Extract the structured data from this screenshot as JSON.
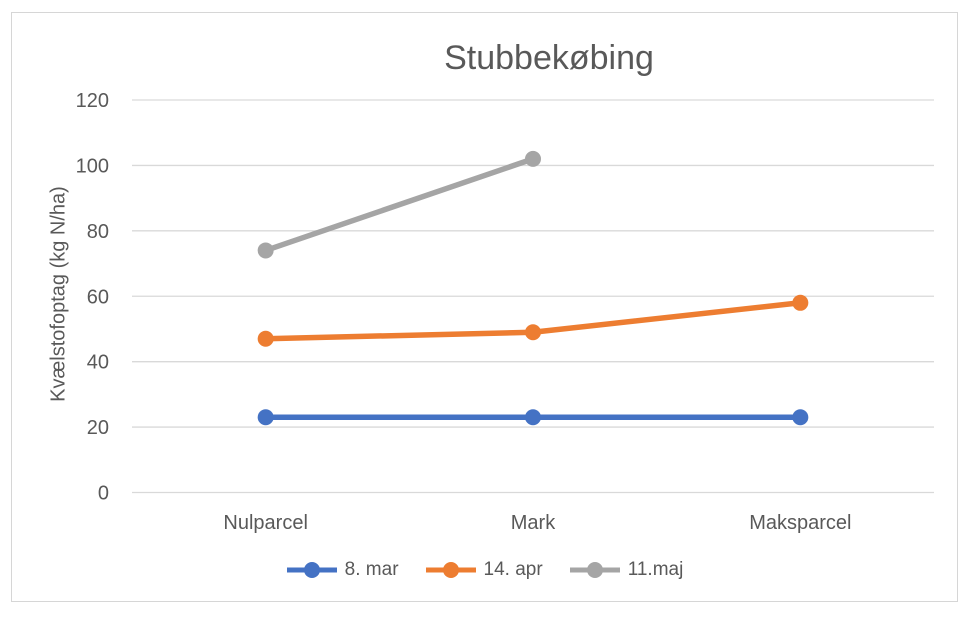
{
  "chart_data": {
    "type": "line",
    "title": "Stubbekøbing",
    "ylabel": "Kvælstofoptag (kg N/ha)",
    "xlabel": "",
    "categories": [
      "Nulparcel",
      "Mark",
      "Maksparcel"
    ],
    "series": [
      {
        "name": "8. mar",
        "color": "#4472C4",
        "values": [
          23,
          23,
          23
        ]
      },
      {
        "name": "14. apr",
        "color": "#ED7D31",
        "values": [
          47,
          49,
          58
        ]
      },
      {
        "name": "11.maj",
        "color": "#A5A5A5",
        "values": [
          74,
          102,
          null
        ]
      }
    ],
    "ylim": [
      0,
      120
    ],
    "ytick_step": 20,
    "yticks": [
      0,
      20,
      40,
      60,
      80,
      100,
      120
    ],
    "grid": true,
    "legend_position": "bottom",
    "text_color": "#595959",
    "gridline_color": "#D9D9D9",
    "frame_border_color": "#D6D6D6",
    "background_color": "#FFFFFF"
  }
}
